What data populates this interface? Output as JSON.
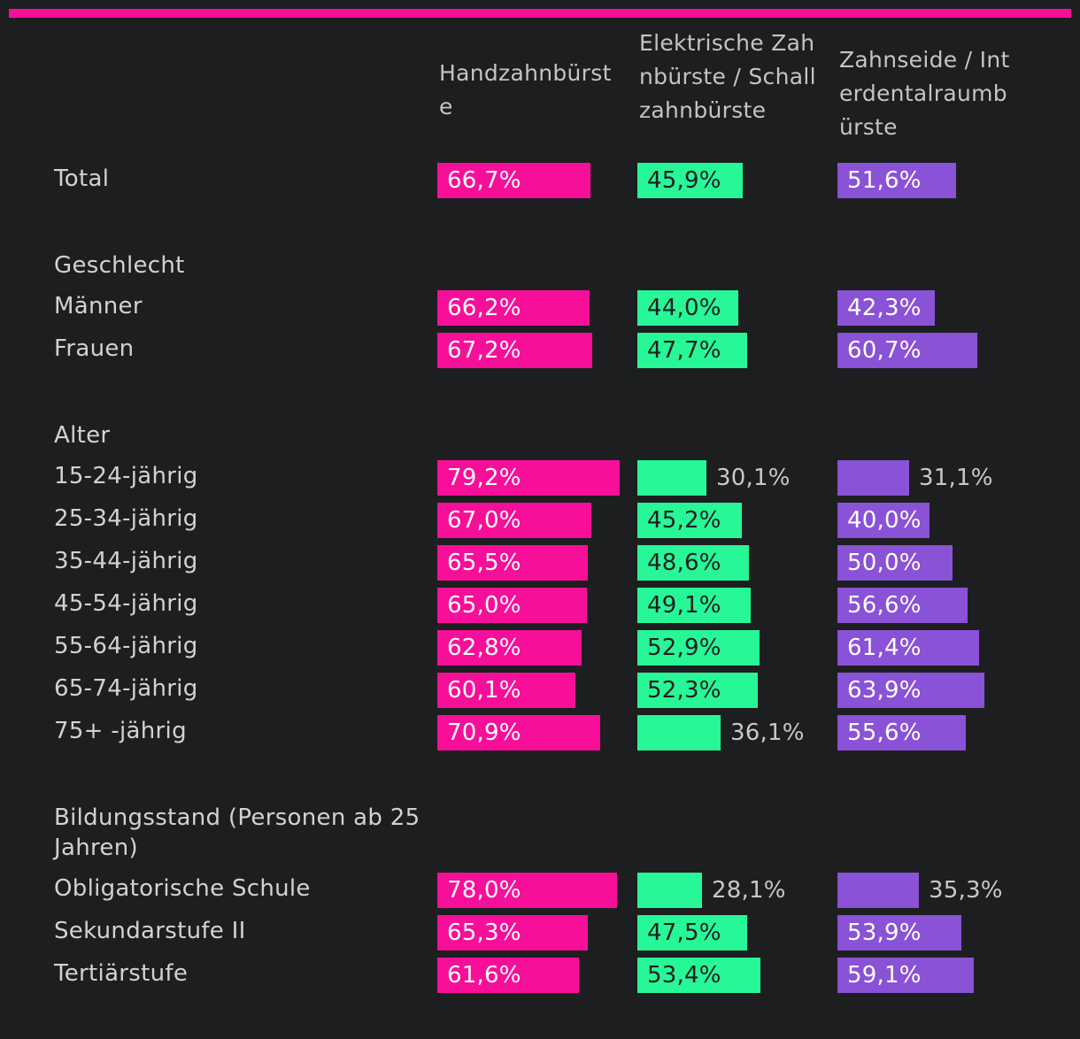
{
  "chart_data": {
    "type": "bar",
    "orientation": "horizontal",
    "title": "",
    "xlim": [
      0,
      100
    ],
    "value_format": "percent_comma",
    "columns": [
      {
        "name": "Handzahnbürste",
        "color": "#f70f99",
        "inside_text_color": "#ffffff"
      },
      {
        "name": "Elektrische Zahnbürste / Schallzahnbürste",
        "color": "#27f797",
        "inside_text_color": "#1d1e20"
      },
      {
        "name": "Zahnseide / Interdentalraumbürste",
        "color": "#8a52d6",
        "inside_text_color": "#ffffff"
      }
    ],
    "rows": [
      {
        "type": "row",
        "label": "Total",
        "values": [
          66.7,
          45.9,
          51.6
        ]
      },
      {
        "type": "spacer"
      },
      {
        "type": "group",
        "label": "Geschlecht"
      },
      {
        "type": "row",
        "label": "Männer",
        "values": [
          66.2,
          44.0,
          42.3
        ]
      },
      {
        "type": "row",
        "label": "Frauen",
        "values": [
          67.2,
          47.7,
          60.7
        ]
      },
      {
        "type": "spacer"
      },
      {
        "type": "group",
        "label": "Alter"
      },
      {
        "type": "row",
        "label": "15-24-jährig",
        "values": [
          79.2,
          30.1,
          31.1
        ]
      },
      {
        "type": "row",
        "label": "25-34-jährig",
        "values": [
          67.0,
          45.2,
          40.0
        ]
      },
      {
        "type": "row",
        "label": "35-44-jährig",
        "values": [
          65.5,
          48.6,
          50.0
        ]
      },
      {
        "type": "row",
        "label": "45-54-jährig",
        "values": [
          65.0,
          49.1,
          56.6
        ]
      },
      {
        "type": "row",
        "label": "55-64-jährig",
        "values": [
          62.8,
          52.9,
          61.4
        ]
      },
      {
        "type": "row",
        "label": "65-74-jährig",
        "values": [
          60.1,
          52.3,
          63.9
        ]
      },
      {
        "type": "row",
        "label": "75+ -jährig",
        "values": [
          70.9,
          36.1,
          55.6
        ]
      },
      {
        "type": "spacer"
      },
      {
        "type": "group",
        "label": "Bildungsstand (Personen ab 25 Jahren)",
        "lines": 2
      },
      {
        "type": "row",
        "label": "Obligatorische Schule",
        "values": [
          78.0,
          28.1,
          35.3
        ]
      },
      {
        "type": "row",
        "label": "Sekundarstufe II",
        "values": [
          65.3,
          47.5,
          53.9
        ]
      },
      {
        "type": "row",
        "label": "Tertiärstufe",
        "values": [
          61.6,
          53.4,
          59.1
        ]
      }
    ]
  },
  "colors": {
    "background": "#1d1e20",
    "top_bar": "#f70f99",
    "text": "#d2d2d2"
  }
}
